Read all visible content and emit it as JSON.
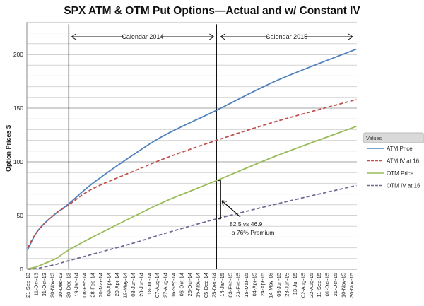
{
  "chart_data": {
    "type": "line",
    "title": "SPX ATM & OTM Put Options—Actual and w/ Constant IV",
    "xlabel": "",
    "ylabel": "Option Prices $",
    "ylim": [
      0,
      230
    ],
    "yticks": [
      0,
      50,
      100,
      150,
      200
    ],
    "grid": true,
    "legend_title": "Values",
    "legend_position": "right",
    "xtick_labels": [
      "21-Sep-13",
      "11-Oct-13",
      "31-Oct-13",
      "20-Nov-13",
      "10-Dec-13",
      "30-Dec-13",
      "19-Jan-14",
      "08-Feb-14",
      "28-Feb-14",
      "20-Mar-14",
      "09-Apr-14",
      "29-Apr-14",
      "19-May-14",
      "08-Jun-14",
      "28-Jun-14",
      "18-Jul-14",
      "07-Aug-14",
      "27-Aug-14",
      "16-Sep-14",
      "06-Oct-14",
      "26-Oct-14",
      "15-Nov-14",
      "05-Dec-14",
      "25-Dec-14",
      "14-Jan-15",
      "03-Feb-15",
      "23-Feb-15",
      "15-Mar-15",
      "04-Apr-15",
      "24-Apr-15",
      "14-May-15",
      "03-Jun-15",
      "23-Jun-15",
      "13-Jul-15",
      "02-Aug-15",
      "22-Aug-15",
      "11-Sep-15",
      "01-Oct-15",
      "21-Oct-15",
      "10-Nov-15",
      "30-Nov-15"
    ],
    "x": [
      "2013-09-21",
      "2013-10-11",
      "2013-10-31",
      "2013-11-30",
      "2014-01-01",
      "2014-03-01",
      "2014-06-15",
      "2014-09-01",
      "2015-01-01",
      "2015-06-01",
      "2015-12-13"
    ],
    "series": [
      {
        "name": "ATM Price",
        "color": "#4f81bd",
        "dash": false,
        "values": [
          18,
          33,
          42,
          52,
          61,
          80,
          108,
          126,
          148,
          176,
          205
        ]
      },
      {
        "name": "ATM IV at 16",
        "color": "#c0504d",
        "dash": true,
        "values": [
          20,
          33,
          42,
          52,
          60,
          75,
          92,
          104,
          120,
          138,
          158
        ]
      },
      {
        "name": "OTM Price",
        "color": "#9bbb59",
        "dash": false,
        "values": [
          0.5,
          2,
          5,
          10,
          18,
          30,
          50,
          64,
          82.5,
          106,
          133
        ]
      },
      {
        "name": "OTM IV at 16",
        "color": "#6f6a95",
        "dash": true,
        "values": [
          0,
          0.5,
          2,
          4.5,
          8,
          14,
          25,
          34,
          46.9,
          61,
          78
        ]
      }
    ],
    "markers": [
      {
        "date": "2014-01-01",
        "label": "Calendar 2014"
      },
      {
        "date": "2015-01-01",
        "label": "Calendar 2015"
      }
    ],
    "annotation": {
      "line1": "82.5 vs 46.9",
      "line2": "-a 76% Premium",
      "date": "2015-01-01",
      "high": 82.5,
      "low": 46.9
    }
  }
}
